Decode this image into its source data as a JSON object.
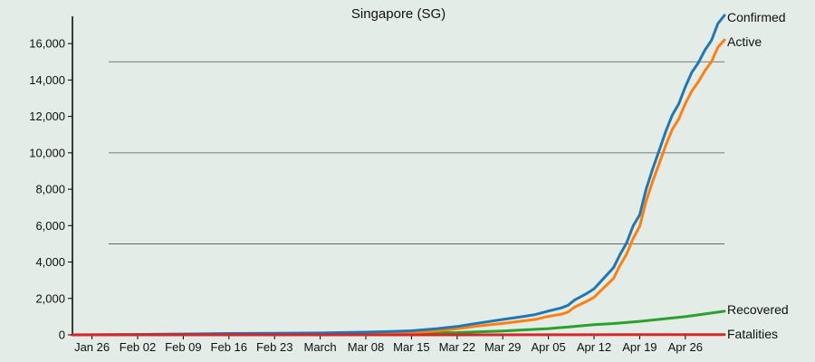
{
  "chart_data": {
    "type": "line",
    "title": "Singapore (SG)",
    "xlabel": "",
    "ylabel": "",
    "x_ticks": [
      "Jan 26",
      "Feb 02",
      "Feb 09",
      "Feb 16",
      "Feb 23",
      "March",
      "Mar 08",
      "Mar 15",
      "Mar 22",
      "Mar 29",
      "Apr 05",
      "Apr 12",
      "Apr 19",
      "Apr 26"
    ],
    "y_ticks": [
      0,
      2000,
      4000,
      6000,
      8000,
      10000,
      12000,
      14000,
      16000
    ],
    "y_tick_labels": [
      "0",
      "2,000",
      "4,000",
      "6,000",
      "8,000",
      "10,000",
      "12,000",
      "14,000",
      "16,000"
    ],
    "ylim": [
      0,
      17500
    ],
    "xlim": [
      "2020-01-23",
      "2020-05-02"
    ],
    "grid": "horizontal at 5,000 / 10,000 / 15,000",
    "gridlines": [
      5000,
      10000,
      15000
    ],
    "legend": "end-of-line labels (right)",
    "series": [
      {
        "name": "Confirmed",
        "color": "#1f77b4",
        "points": [
          [
            "2020-01-23",
            1
          ],
          [
            "2020-02-01",
            18
          ],
          [
            "2020-02-09",
            43
          ],
          [
            "2020-02-16",
            75
          ],
          [
            "2020-02-23",
            89
          ],
          [
            "2020-03-01",
            106
          ],
          [
            "2020-03-08",
            150
          ],
          [
            "2020-03-12",
            187
          ],
          [
            "2020-03-15",
            226
          ],
          [
            "2020-03-19",
            345
          ],
          [
            "2020-03-22",
            455
          ],
          [
            "2020-03-25",
            631
          ],
          [
            "2020-03-29",
            844
          ],
          [
            "2020-04-01",
            1000
          ],
          [
            "2020-04-03",
            1114
          ],
          [
            "2020-04-05",
            1309
          ],
          [
            "2020-04-07",
            1481
          ],
          [
            "2020-04-08",
            1623
          ],
          [
            "2020-04-09",
            1910
          ],
          [
            "2020-04-11",
            2299
          ],
          [
            "2020-04-12",
            2532
          ],
          [
            "2020-04-13",
            2918
          ],
          [
            "2020-04-15",
            3699
          ],
          [
            "2020-04-16",
            4427
          ],
          [
            "2020-04-17",
            5050
          ],
          [
            "2020-04-18",
            5992
          ],
          [
            "2020-04-19",
            6588
          ],
          [
            "2020-04-20",
            8014
          ],
          [
            "2020-04-21",
            9125
          ],
          [
            "2020-04-22",
            10141
          ],
          [
            "2020-04-23",
            11178
          ],
          [
            "2020-04-24",
            12075
          ],
          [
            "2020-04-25",
            12693
          ],
          [
            "2020-04-26",
            13624
          ],
          [
            "2020-04-27",
            14423
          ],
          [
            "2020-04-28",
            14951
          ],
          [
            "2020-04-29",
            15641
          ],
          [
            "2020-04-30",
            16169
          ],
          [
            "2020-05-01",
            17101
          ],
          [
            "2020-05-02",
            17548
          ]
        ]
      },
      {
        "name": "Active",
        "color": "#ff7f0e",
        "points": [
          [
            "2020-01-23",
            1
          ],
          [
            "2020-02-01",
            18
          ],
          [
            "2020-02-09",
            40
          ],
          [
            "2020-02-16",
            57
          ],
          [
            "2020-02-23",
            40
          ],
          [
            "2020-03-01",
            32
          ],
          [
            "2020-03-08",
            72
          ],
          [
            "2020-03-12",
            96
          ],
          [
            "2020-03-15",
            121
          ],
          [
            "2020-03-19",
            221
          ],
          [
            "2020-03-22",
            331
          ],
          [
            "2020-03-25",
            475
          ],
          [
            "2020-03-29",
            624
          ],
          [
            "2020-04-01",
            755
          ],
          [
            "2020-04-03",
            850
          ],
          [
            "2020-04-05",
            1013
          ],
          [
            "2020-04-07",
            1136
          ],
          [
            "2020-04-08",
            1253
          ],
          [
            "2020-04-09",
            1522
          ],
          [
            "2020-04-11",
            1862
          ],
          [
            "2020-04-12",
            2056
          ],
          [
            "2020-04-13",
            2418
          ],
          [
            "2020-04-15",
            3100
          ],
          [
            "2020-04-16",
            3829
          ],
          [
            "2020-04-17",
            4438
          ],
          [
            "2020-04-18",
            5300
          ],
          [
            "2020-04-19",
            5950
          ],
          [
            "2020-04-20",
            7357
          ],
          [
            "2020-04-21",
            8440
          ],
          [
            "2020-04-22",
            9413
          ],
          [
            "2020-04-23",
            10400
          ],
          [
            "2020-04-24",
            11292
          ],
          [
            "2020-04-25",
            11862
          ],
          [
            "2020-04-26",
            12700
          ],
          [
            "2020-04-27",
            13400
          ],
          [
            "2020-04-28",
            13900
          ],
          [
            "2020-04-29",
            14500
          ],
          [
            "2020-04-30",
            15000
          ],
          [
            "2020-05-01",
            15800
          ],
          [
            "2020-05-02",
            16200
          ]
        ]
      },
      {
        "name": "Recovered",
        "color": "#2ca02c",
        "points": [
          [
            "2020-01-23",
            0
          ],
          [
            "2020-02-01",
            0
          ],
          [
            "2020-02-09",
            3
          ],
          [
            "2020-02-16",
            18
          ],
          [
            "2020-02-23",
            49
          ],
          [
            "2020-03-01",
            74
          ],
          [
            "2020-03-08",
            78
          ],
          [
            "2020-03-15",
            105
          ],
          [
            "2020-03-22",
            124
          ],
          [
            "2020-03-29",
            212
          ],
          [
            "2020-04-05",
            344
          ],
          [
            "2020-04-09",
            460
          ],
          [
            "2020-04-12",
            560
          ],
          [
            "2020-04-15",
            620
          ],
          [
            "2020-04-19",
            740
          ],
          [
            "2020-04-22",
            850
          ],
          [
            "2020-04-26",
            1000
          ],
          [
            "2020-04-29",
            1150
          ],
          [
            "2020-05-02",
            1300
          ]
        ]
      },
      {
        "name": "Fatalities",
        "color": "#d62728",
        "points": [
          [
            "2020-01-23",
            0
          ],
          [
            "2020-03-20",
            2
          ],
          [
            "2020-04-05",
            6
          ],
          [
            "2020-04-19",
            11
          ],
          [
            "2020-05-02",
            16
          ]
        ]
      }
    ]
  }
}
